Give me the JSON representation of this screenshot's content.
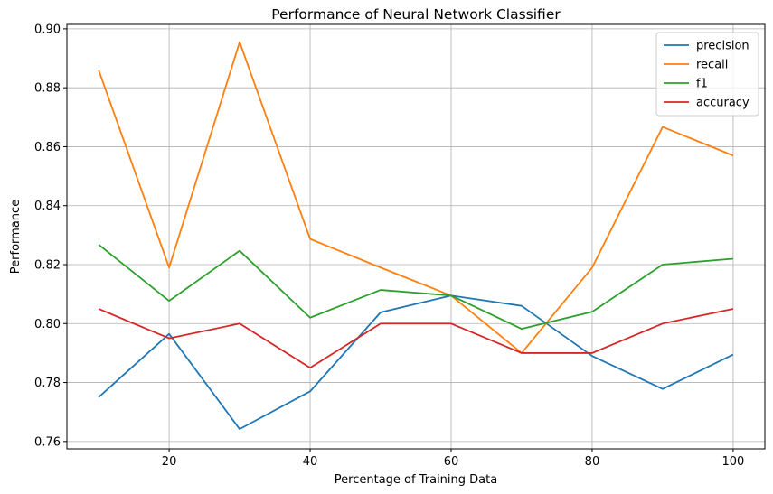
{
  "chart_data": {
    "type": "line",
    "title": "Performance of Neural Network Classifier",
    "xlabel": "Percentage of Training Data",
    "ylabel": "Performance",
    "x": [
      10,
      20,
      30,
      40,
      50,
      60,
      70,
      80,
      90,
      100
    ],
    "xlim": [
      5.5,
      104.5
    ],
    "ylim": [
      0.7575,
      0.9015
    ],
    "xticks": [
      20,
      40,
      60,
      80,
      100
    ],
    "yticks": [
      0.76,
      0.78,
      0.8,
      0.82,
      0.84,
      0.86,
      0.88,
      0.9
    ],
    "xtick_labels": [
      "20",
      "40",
      "60",
      "80",
      "100"
    ],
    "ytick_labels": [
      "0.76",
      "0.78",
      "0.80",
      "0.82",
      "0.84",
      "0.86",
      "0.88",
      "0.90"
    ],
    "grid": true,
    "legend_position": "top-right",
    "series": [
      {
        "name": "precision",
        "color": "#1f77b4",
        "values": [
          0.775,
          0.7965,
          0.7642,
          0.777,
          0.8038,
          0.8095,
          0.806,
          0.789,
          0.7778,
          0.7895
        ]
      },
      {
        "name": "recall",
        "color": "#ff7f0e",
        "values": [
          0.886,
          0.819,
          0.8955,
          0.8287,
          0.819,
          0.8095,
          0.79,
          0.819,
          0.8667,
          0.857
        ]
      },
      {
        "name": "f1",
        "color": "#2ca02c",
        "values": [
          0.8268,
          0.8077,
          0.8247,
          0.802,
          0.8114,
          0.8095,
          0.7982,
          0.804,
          0.82,
          0.822
        ]
      },
      {
        "name": "accuracy",
        "color": "#d62728",
        "values": [
          0.805,
          0.795,
          0.8,
          0.785,
          0.8,
          0.8,
          0.79,
          0.79,
          0.8,
          0.805
        ]
      }
    ]
  }
}
